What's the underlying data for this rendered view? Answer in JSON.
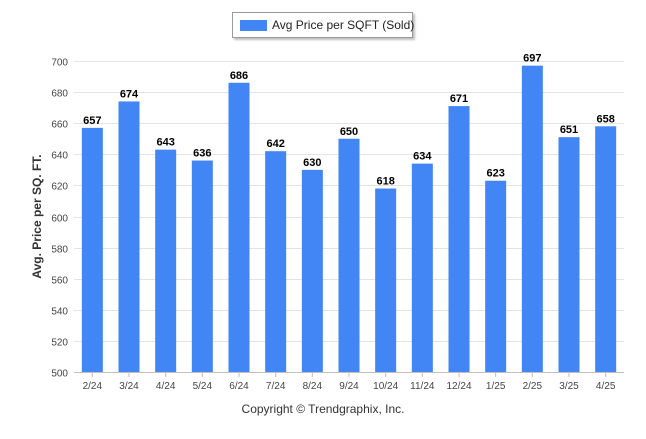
{
  "chart_data": {
    "type": "bar",
    "categories": [
      "2/24",
      "3/24",
      "4/24",
      "5/24",
      "6/24",
      "7/24",
      "8/24",
      "9/24",
      "10/24",
      "11/24",
      "12/24",
      "1/25",
      "2/25",
      "3/25",
      "4/25"
    ],
    "series": [
      {
        "name": "Avg Price per SQFT (Sold)",
        "values": [
          657,
          674,
          643,
          636,
          686,
          642,
          630,
          650,
          618,
          634,
          671,
          623,
          697,
          651,
          658
        ]
      }
    ],
    "title": "",
    "xlabel": "",
    "ylabel": "Avg. Price per SQ. FT.",
    "ylim": [
      500,
      700
    ],
    "yticks": [
      500,
      520,
      540,
      560,
      580,
      600,
      620,
      640,
      660,
      680,
      700
    ],
    "grid": true,
    "legend_position": "top-center",
    "data_labels": true,
    "bar_color": "#4285f4"
  },
  "footer": {
    "copyright": "Copyright © Trendgraphix, Inc."
  }
}
